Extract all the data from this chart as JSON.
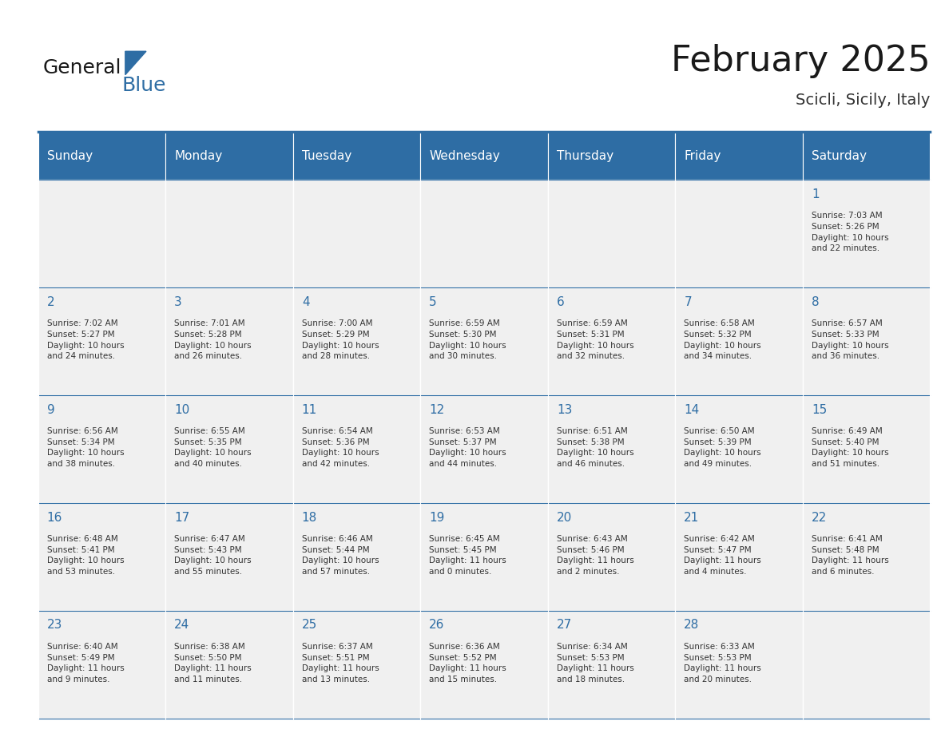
{
  "title": "February 2025",
  "subtitle": "Scicli, Sicily, Italy",
  "header_color": "#2E6DA4",
  "header_text_color": "#FFFFFF",
  "bg_color": "#FFFFFF",
  "cell_bg_color": "#F0F0F0",
  "text_color": "#333333",
  "day_number_color": "#2E6DA4",
  "days_of_week": [
    "Sunday",
    "Monday",
    "Tuesday",
    "Wednesday",
    "Thursday",
    "Friday",
    "Saturday"
  ],
  "weeks": [
    [
      {
        "day": "",
        "info": ""
      },
      {
        "day": "",
        "info": ""
      },
      {
        "day": "",
        "info": ""
      },
      {
        "day": "",
        "info": ""
      },
      {
        "day": "",
        "info": ""
      },
      {
        "day": "",
        "info": ""
      },
      {
        "day": "1",
        "info": "Sunrise: 7:03 AM\nSunset: 5:26 PM\nDaylight: 10 hours\nand 22 minutes."
      }
    ],
    [
      {
        "day": "2",
        "info": "Sunrise: 7:02 AM\nSunset: 5:27 PM\nDaylight: 10 hours\nand 24 minutes."
      },
      {
        "day": "3",
        "info": "Sunrise: 7:01 AM\nSunset: 5:28 PM\nDaylight: 10 hours\nand 26 minutes."
      },
      {
        "day": "4",
        "info": "Sunrise: 7:00 AM\nSunset: 5:29 PM\nDaylight: 10 hours\nand 28 minutes."
      },
      {
        "day": "5",
        "info": "Sunrise: 6:59 AM\nSunset: 5:30 PM\nDaylight: 10 hours\nand 30 minutes."
      },
      {
        "day": "6",
        "info": "Sunrise: 6:59 AM\nSunset: 5:31 PM\nDaylight: 10 hours\nand 32 minutes."
      },
      {
        "day": "7",
        "info": "Sunrise: 6:58 AM\nSunset: 5:32 PM\nDaylight: 10 hours\nand 34 minutes."
      },
      {
        "day": "8",
        "info": "Sunrise: 6:57 AM\nSunset: 5:33 PM\nDaylight: 10 hours\nand 36 minutes."
      }
    ],
    [
      {
        "day": "9",
        "info": "Sunrise: 6:56 AM\nSunset: 5:34 PM\nDaylight: 10 hours\nand 38 minutes."
      },
      {
        "day": "10",
        "info": "Sunrise: 6:55 AM\nSunset: 5:35 PM\nDaylight: 10 hours\nand 40 minutes."
      },
      {
        "day": "11",
        "info": "Sunrise: 6:54 AM\nSunset: 5:36 PM\nDaylight: 10 hours\nand 42 minutes."
      },
      {
        "day": "12",
        "info": "Sunrise: 6:53 AM\nSunset: 5:37 PM\nDaylight: 10 hours\nand 44 minutes."
      },
      {
        "day": "13",
        "info": "Sunrise: 6:51 AM\nSunset: 5:38 PM\nDaylight: 10 hours\nand 46 minutes."
      },
      {
        "day": "14",
        "info": "Sunrise: 6:50 AM\nSunset: 5:39 PM\nDaylight: 10 hours\nand 49 minutes."
      },
      {
        "day": "15",
        "info": "Sunrise: 6:49 AM\nSunset: 5:40 PM\nDaylight: 10 hours\nand 51 minutes."
      }
    ],
    [
      {
        "day": "16",
        "info": "Sunrise: 6:48 AM\nSunset: 5:41 PM\nDaylight: 10 hours\nand 53 minutes."
      },
      {
        "day": "17",
        "info": "Sunrise: 6:47 AM\nSunset: 5:43 PM\nDaylight: 10 hours\nand 55 minutes."
      },
      {
        "day": "18",
        "info": "Sunrise: 6:46 AM\nSunset: 5:44 PM\nDaylight: 10 hours\nand 57 minutes."
      },
      {
        "day": "19",
        "info": "Sunrise: 6:45 AM\nSunset: 5:45 PM\nDaylight: 11 hours\nand 0 minutes."
      },
      {
        "day": "20",
        "info": "Sunrise: 6:43 AM\nSunset: 5:46 PM\nDaylight: 11 hours\nand 2 minutes."
      },
      {
        "day": "21",
        "info": "Sunrise: 6:42 AM\nSunset: 5:47 PM\nDaylight: 11 hours\nand 4 minutes."
      },
      {
        "day": "22",
        "info": "Sunrise: 6:41 AM\nSunset: 5:48 PM\nDaylight: 11 hours\nand 6 minutes."
      }
    ],
    [
      {
        "day": "23",
        "info": "Sunrise: 6:40 AM\nSunset: 5:49 PM\nDaylight: 11 hours\nand 9 minutes."
      },
      {
        "day": "24",
        "info": "Sunrise: 6:38 AM\nSunset: 5:50 PM\nDaylight: 11 hours\nand 11 minutes."
      },
      {
        "day": "25",
        "info": "Sunrise: 6:37 AM\nSunset: 5:51 PM\nDaylight: 11 hours\nand 13 minutes."
      },
      {
        "day": "26",
        "info": "Sunrise: 6:36 AM\nSunset: 5:52 PM\nDaylight: 11 hours\nand 15 minutes."
      },
      {
        "day": "27",
        "info": "Sunrise: 6:34 AM\nSunset: 5:53 PM\nDaylight: 11 hours\nand 18 minutes."
      },
      {
        "day": "28",
        "info": "Sunrise: 6:33 AM\nSunset: 5:53 PM\nDaylight: 11 hours\nand 20 minutes."
      },
      {
        "day": "",
        "info": ""
      }
    ]
  ],
  "logo_text1": "General",
  "logo_text2": "Blue",
  "header_font_size": 11,
  "day_number_font_size": 11,
  "info_font_size": 7.5,
  "title_font_size": 32,
  "subtitle_font_size": 14,
  "logo_font_size": 18
}
